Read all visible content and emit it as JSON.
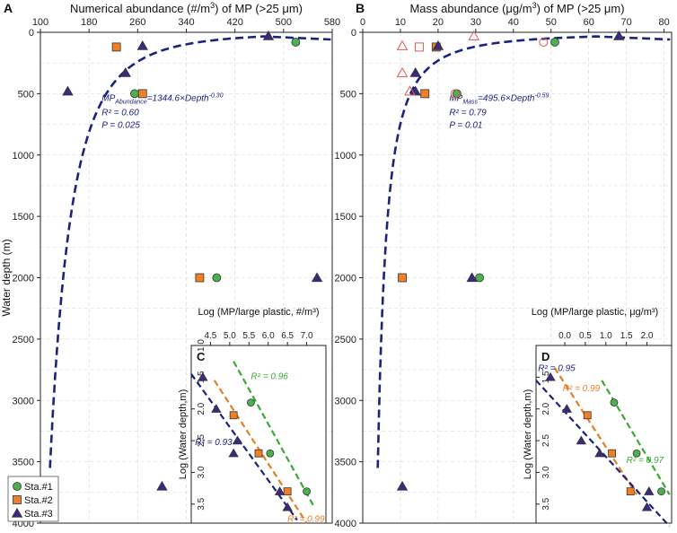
{
  "colors": {
    "sta1": "#4caf50",
    "sta2": "#f07f2a",
    "sta3": "#3d2a7f",
    "fit_main": "#1a237e",
    "fit_sta1": "#3aaa35",
    "fit_sta2": "#e67e22",
    "fit_sta3": "#1a237e",
    "grid": "#d6d6d6",
    "annot": "#1a237e"
  },
  "shared": {
    "ylabel": "Water depth (m)",
    "legend": [
      "Sta.#1",
      "Sta.#2",
      "Sta.#3"
    ]
  },
  "chart_data": [
    {
      "id": "A",
      "panel_label": "A",
      "type": "scatter",
      "title_main": "Numerical abundance (#/m",
      "title_sup": "3",
      "title_tail": ") of MP (>25 μm)",
      "xlim": [
        100,
        580
      ],
      "xticks": [
        100,
        180,
        260,
        340,
        420,
        500,
        580
      ],
      "ylim": [
        0,
        4000
      ],
      "yticks": [
        0,
        500,
        1000,
        1500,
        2000,
        2500,
        3000,
        3500,
        4000
      ],
      "series": [
        {
          "name": "Sta.#1",
          "marker": "circle",
          "points": [
            [
              520,
              80
            ],
            [
              255,
              500
            ],
            [
              390,
              2000
            ]
          ]
        },
        {
          "name": "Sta.#2",
          "marker": "square",
          "points": [
            [
              225,
              120
            ],
            [
              268,
              500
            ],
            [
              362,
              2000
            ]
          ]
        },
        {
          "name": "Sta.#3",
          "marker": "triangle",
          "points": [
            [
              475,
              30
            ],
            [
              268,
              110
            ],
            [
              240,
              330
            ],
            [
              145,
              480
            ],
            [
              555,
              2000
            ],
            [
              300,
              3700
            ]
          ]
        }
      ],
      "fit": {
        "type": "power",
        "a": 1344.6,
        "b": -0.3
      },
      "equation": {
        "lhs": "MP",
        "sub": "Abundance",
        "rhs": "=1344.6×Depth",
        "sup": "-0.30",
        "r2": "R² = 0.60",
        "p": "P = 0.025"
      },
      "inset": {
        "label": "C",
        "xlabel": "Log (MP/large plastic, #/m³)",
        "ylabel": "Log (Water depth,m)",
        "xlim": [
          4.0,
          7.5
        ],
        "xticks": [
          "4.5",
          "5.0",
          "5.5",
          "6.0",
          "6.5",
          "7.0"
        ],
        "ylim": [
          1.0,
          3.8
        ],
        "yticks": [
          "1.0",
          "1.5",
          "2.0",
          "2.5",
          "3.0",
          "3.5"
        ],
        "series": [
          {
            "name": "Sta.#1",
            "marker": "circle",
            "points": [
              [
                5.55,
                1.9
              ],
              [
                6.05,
                2.7
              ],
              [
                7.0,
                3.3
              ]
            ],
            "fit": [
              [
                5.1,
                1.25
              ],
              [
                7.2,
                3.55
              ]
            ],
            "r2": "R² = 0.96",
            "r2pos": [
              5.55,
              1.53
            ]
          },
          {
            "name": "Sta.#2",
            "marker": "square",
            "points": [
              [
                5.1,
                2.1
              ],
              [
                5.75,
                2.7
              ],
              [
                6.5,
                3.3
              ]
            ],
            "fit": [
              [
                4.6,
                1.55
              ],
              [
                7.0,
                3.8
              ]
            ],
            "r2": "R² = 0.99",
            "r2pos": [
              6.5,
              3.78
            ]
          },
          {
            "name": "Sta.#3",
            "marker": "triangle",
            "points": [
              [
                4.3,
                1.5
              ],
              [
                4.65,
                2.0
              ],
              [
                5.2,
                2.5
              ],
              [
                5.1,
                2.7
              ],
              [
                6.3,
                3.3
              ],
              [
                6.5,
                3.55
              ]
            ],
            "fit": [
              [
                4.0,
                1.45
              ],
              [
                6.75,
                3.75
              ]
            ],
            "r2": "R² = 0.93",
            "r2pos": [
              4.1,
              2.57
            ]
          }
        ]
      }
    },
    {
      "id": "B",
      "panel_label": "B",
      "type": "scatter",
      "title_main": "Mass abundance (μg/m",
      "title_sup": "3",
      "title_tail": ") of MP (>25 μm)",
      "xlim": [
        0,
        82
      ],
      "xticks": [
        0,
        10,
        20,
        30,
        40,
        50,
        60,
        70,
        80
      ],
      "ylim": [
        0,
        4000
      ],
      "yticks": [
        0,
        500,
        1000,
        1500,
        2000,
        2500,
        3000,
        3500,
        4000
      ],
      "series": [
        {
          "name": "Sta.#1",
          "marker": "circle",
          "points": [
            [
              51,
              80
            ],
            [
              25,
              500
            ],
            [
              31,
              2000
            ]
          ]
        },
        {
          "name": "Sta.#2",
          "marker": "square",
          "points": [
            [
              19.5,
              120
            ],
            [
              16.5,
              500
            ],
            [
              10.5,
              2000
            ]
          ]
        },
        {
          "name": "Sta.#3",
          "marker": "triangle",
          "points": [
            [
              68,
              30
            ],
            [
              20,
              110
            ],
            [
              14,
              330
            ],
            [
              14,
              480
            ],
            [
              29,
              2000
            ],
            [
              10.5,
              3700
            ]
          ]
        },
        {
          "name": "Sta.#1 (open)",
          "marker": "circle-open",
          "points": [
            [
              48,
              80
            ],
            [
              24.5,
              500
            ]
          ]
        },
        {
          "name": "Sta.#2 (open)",
          "marker": "square-open",
          "points": [
            [
              15,
              120
            ]
          ]
        },
        {
          "name": "Sta.#3 (open)",
          "marker": "triangle-open",
          "points": [
            [
              29.5,
              30
            ],
            [
              10.5,
              110
            ],
            [
              10.5,
              330
            ],
            [
              12.5,
              480
            ]
          ]
        }
      ],
      "fit": {
        "type": "power",
        "a": 495.6,
        "b": -0.59
      },
      "equation": {
        "lhs": "MP",
        "sub": "Mass",
        "rhs": "=495.6×Depth",
        "sup": "-0.59",
        "r2": "R² = 0.79",
        "p": "P = 0.01"
      },
      "inset": {
        "label": "D",
        "xlabel": "Log (MP/large plastic, μg/m³)",
        "ylabel": "Log (Water depth,m)",
        "xlim": [
          -0.7,
          2.6
        ],
        "xticks": [
          "0.0",
          "0.5",
          "1.0",
          "1.5",
          "2.0"
        ],
        "xticks_extra_left": "",
        "ylim": [
          1.0,
          3.8
        ],
        "yticks": [
          "1.5",
          "2.0",
          "2.5",
          "3.0",
          "3.5"
        ],
        "series": [
          {
            "name": "Sta.#1",
            "marker": "circle",
            "points": [
              [
                1.2,
                1.9
              ],
              [
                1.75,
                2.7
              ],
              [
                2.35,
                3.3
              ]
            ],
            "fit": [
              [
                0.9,
                1.55
              ],
              [
                2.55,
                3.35
              ]
            ],
            "r2": "R² = 0.97",
            "r2pos": [
              1.5,
              2.85
            ]
          },
          {
            "name": "Sta.#2",
            "marker": "square",
            "points": [
              [
                0.55,
                2.1
              ],
              [
                1.15,
                2.7
              ],
              [
                1.6,
                3.3
              ]
            ],
            "fit": [
              [
                -0.25,
                1.35
              ],
              [
                1.75,
                3.35
              ]
            ],
            "r2": "R² = 0.99",
            "r2pos": [
              -0.05,
              1.72
            ]
          },
          {
            "name": "Sta.#3",
            "marker": "triangle",
            "points": [
              [
                -0.35,
                1.5
              ],
              [
                0.05,
                2.0
              ],
              [
                0.4,
                2.5
              ],
              [
                0.85,
                2.7
              ],
              [
                2.05,
                3.3
              ],
              [
                2.0,
                3.55
              ]
            ],
            "fit": [
              [
                -0.7,
                1.55
              ],
              [
                2.55,
                3.85
              ]
            ],
            "r2": "R² = 0.95",
            "r2pos": [
              -0.65,
              1.4
            ]
          }
        ]
      }
    }
  ]
}
